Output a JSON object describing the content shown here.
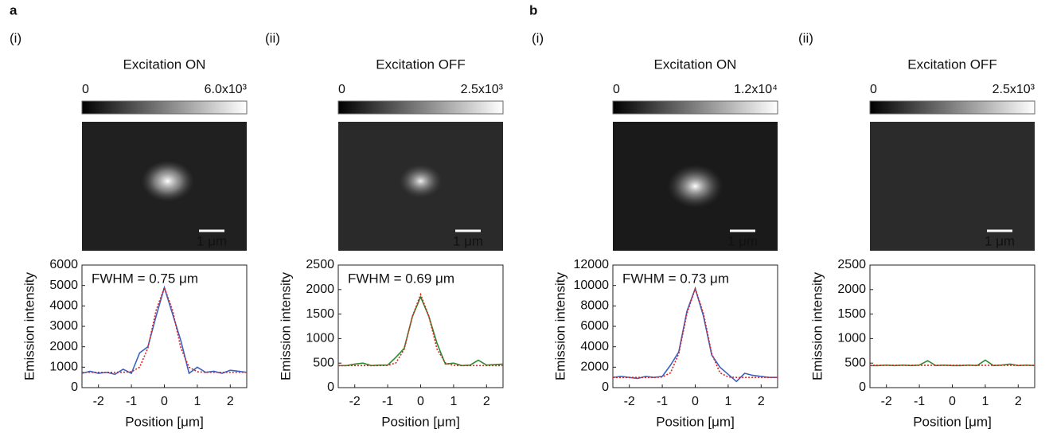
{
  "chart_data": [
    {
      "type": "line",
      "panel": "a",
      "label": "(i)",
      "title": "Excitation ON",
      "colorbar_ticks": [
        0,
        {
          "value": 6000,
          "label": "6.0x10³"
        }
      ],
      "scale_bar": "1 μm",
      "annotation": "FWHM = 0.75 μm",
      "xlabel": "Position [μm]",
      "ylabel": "Emission intensity",
      "x": [
        -2.5,
        -2.25,
        -2,
        -1.75,
        -1.5,
        -1.25,
        -1,
        -0.75,
        -0.5,
        -0.25,
        0,
        0.25,
        0.5,
        0.75,
        1,
        1.25,
        1.5,
        1.75,
        2,
        2.25,
        2.5
      ],
      "xlim": [
        -2.5,
        2.5
      ],
      "xticks": [
        -2,
        -1,
        0,
        1,
        2
      ],
      "ylim": [
        0,
        6000
      ],
      "yticks": [
        0,
        1000,
        2000,
        3000,
        4000,
        5000,
        6000
      ],
      "series": [
        {
          "color": "#3a62c4",
          "line_style": "solid",
          "values": [
            700,
            800,
            700,
            750,
            650,
            900,
            700,
            1700,
            2000,
            3500,
            4900,
            3600,
            2300,
            700,
            1000,
            750,
            800,
            700,
            850,
            800,
            750
          ]
        },
        {
          "color": "#e02020",
          "line_style": "dotted",
          "values": [
            750,
            750,
            750,
            750,
            750,
            752,
            778,
            1000,
            1940,
            3787,
            4900,
            3787,
            1940,
            1000,
            778,
            752,
            750,
            750,
            750,
            750,
            750
          ]
        }
      ]
    },
    {
      "type": "line",
      "label": "(ii)",
      "title": "Excitation OFF",
      "colorbar_ticks": [
        0,
        {
          "value": 2500,
          "label": "2.5x10³"
        }
      ],
      "scale_bar": "1 μm",
      "annotation": "FWHM = 0.69 μm",
      "xlabel": "Position [μm]",
      "ylabel": "Emission intensity",
      "x": [
        -2.5,
        -2.25,
        -2,
        -1.75,
        -1.5,
        -1.25,
        -1,
        -0.75,
        -0.5,
        -0.25,
        0,
        0.25,
        0.5,
        0.75,
        1,
        1.25,
        1.5,
        1.75,
        2,
        2.25,
        2.5
      ],
      "xlim": [
        -2.5,
        2.5
      ],
      "xticks": [
        -2,
        -1,
        0,
        1,
        2
      ],
      "ylim": [
        0,
        2500
      ],
      "yticks": [
        0,
        500,
        1000,
        1500,
        2000,
        2500
      ],
      "series": [
        {
          "color": "#2e8b2e",
          "line_style": "solid",
          "values": [
            450,
            450,
            480,
            500,
            450,
            460,
            460,
            620,
            800,
            1450,
            1850,
            1450,
            900,
            480,
            500,
            450,
            460,
            560,
            460,
            470,
            480
          ]
        },
        {
          "color": "#e02020",
          "line_style": "dotted",
          "values": [
            450,
            450,
            450,
            450,
            450,
            450,
            453,
            504,
            783,
            1453,
            1900,
            1453,
            783,
            504,
            453,
            450,
            450,
            450,
            450,
            450,
            450
          ]
        }
      ]
    },
    {
      "type": "line",
      "panel": "b",
      "label": "(i)",
      "title": "Excitation ON",
      "colorbar_ticks": [
        0,
        {
          "value": 12000,
          "label": "1.2x10⁴"
        }
      ],
      "scale_bar": "1 μm",
      "annotation": "FWHM = 0.73 μm",
      "xlabel": "Position [μm]",
      "ylabel": "Emission intensity",
      "x": [
        -2.5,
        -2.25,
        -2,
        -1.75,
        -1.5,
        -1.25,
        -1,
        -0.75,
        -0.5,
        -0.25,
        0,
        0.25,
        0.5,
        0.75,
        1,
        1.25,
        1.5,
        1.75,
        2,
        2.25,
        2.5
      ],
      "xlim": [
        -2.5,
        2.5
      ],
      "xticks": [
        -2,
        -1,
        0,
        1,
        2
      ],
      "ylim": [
        0,
        12000
      ],
      "yticks": [
        0,
        2000,
        4000,
        6000,
        8000,
        10000,
        12000
      ],
      "series": [
        {
          "color": "#3a62c4",
          "line_style": "solid",
          "values": [
            1000,
            1100,
            1000,
            900,
            1100,
            1000,
            1100,
            2200,
            3500,
            7500,
            9700,
            7000,
            3200,
            2000,
            1300,
            600,
            1400,
            1200,
            1100,
            1000,
            1000
          ]
        },
        {
          "color": "#e02020",
          "line_style": "dotted",
          "values": [
            1000,
            1000,
            1000,
            1000,
            1000,
            1002,
            1045,
            1452,
            3332,
            7264,
            9700,
            7264,
            3332,
            1452,
            1045,
            1002,
            1000,
            1000,
            1000,
            1000,
            1000
          ]
        }
      ]
    },
    {
      "type": "line",
      "label": "(ii)",
      "title": "Excitation OFF",
      "colorbar_ticks": [
        0,
        {
          "value": 2500,
          "label": "2.5x10³"
        }
      ],
      "scale_bar": "1 μm",
      "xlabel": "Position [μm]",
      "ylabel": "Emission intensity",
      "x": [
        -2.5,
        -2.25,
        -2,
        -1.75,
        -1.5,
        -1.25,
        -1,
        -0.75,
        -0.5,
        -0.25,
        0,
        0.25,
        0.5,
        0.75,
        1,
        1.25,
        1.5,
        1.75,
        2,
        2.25,
        2.5
      ],
      "xlim": [
        -2.5,
        2.5
      ],
      "xticks": [
        -2,
        -1,
        0,
        1,
        2
      ],
      "ylim": [
        0,
        2500
      ],
      "yticks": [
        0,
        500,
        1000,
        1500,
        2000,
        2500
      ],
      "series": [
        {
          "color": "#2e8b2e",
          "line_style": "solid",
          "values": [
            450,
            450,
            460,
            450,
            460,
            450,
            460,
            550,
            450,
            460,
            450,
            450,
            460,
            450,
            560,
            450,
            460,
            480,
            450,
            460,
            450
          ]
        },
        {
          "color": "#e02020",
          "line_style": "dotted",
          "values": [
            455,
            455,
            455,
            455,
            455,
            455,
            455,
            455,
            455,
            455,
            455,
            455,
            455,
            455,
            455,
            455,
            455,
            455,
            455,
            455,
            455
          ]
        }
      ]
    }
  ]
}
